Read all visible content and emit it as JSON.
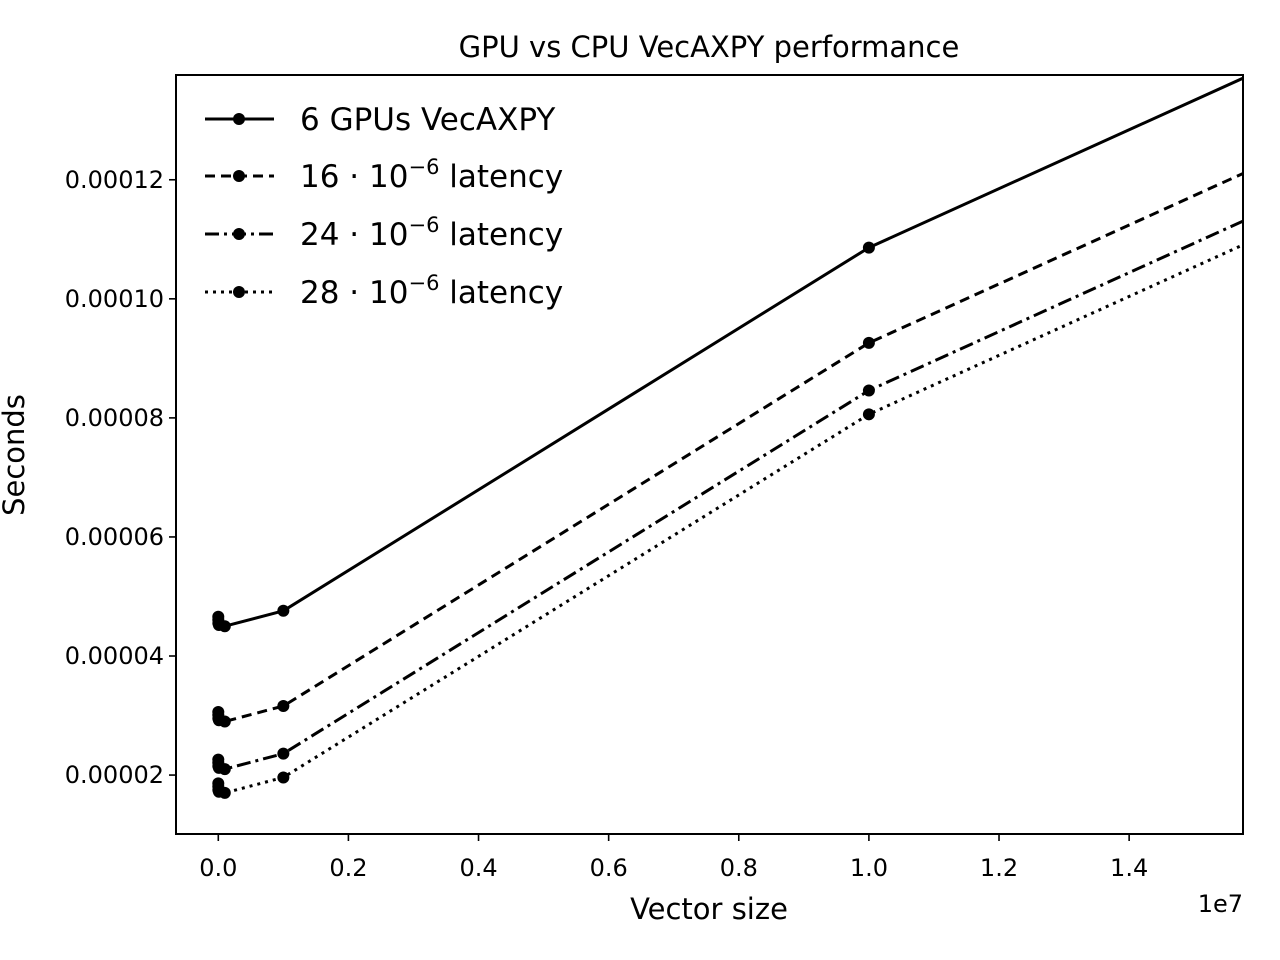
{
  "chart_data": {
    "type": "line",
    "title": "GPU vs CPU VecAXPY performance",
    "xlabel": "Vector size",
    "ylabel": "Seconds",
    "x_offset_label": "1e7",
    "xlim": [
      -650000,
      15750000
    ],
    "ylim": [
      1.01e-05,
      0.0001376
    ],
    "x_ticks": [
      0,
      2000000,
      4000000,
      6000000,
      8000000,
      10000000,
      12000000,
      14000000
    ],
    "x_tick_labels": [
      "0.0",
      "0.2",
      "0.4",
      "0.6",
      "0.8",
      "1.0",
      "1.2",
      "1.4"
    ],
    "y_ticks": [
      2e-05,
      4e-05,
      6e-05,
      8e-05,
      0.0001,
      0.00012
    ],
    "y_tick_labels": [
      "0.00002",
      "0.00004",
      "0.00006",
      "0.00008",
      "0.00010",
      "0.00012"
    ],
    "grid": false,
    "legend_position": "top-left",
    "series": [
      {
        "name": "6 GPUs VecAXPY",
        "label_main": "6 GPUs VecAXPY",
        "label_sup": "",
        "label_tail": "",
        "dash": "",
        "x": [
          10,
          100,
          1000,
          10000,
          100000,
          1000000,
          10000000,
          16000000
        ],
        "y": [
          4.66e-05,
          4.61e-05,
          4.55e-05,
          4.52e-05,
          4.5e-05,
          4.76e-05,
          0.0001086,
          0.0001383
        ]
      },
      {
        "name": "16 · 10−6 latency",
        "label_main": "16 · 10",
        "label_sup": "−6",
        "label_tail": " latency",
        "dash": "10,6",
        "x": [
          10,
          100,
          1000,
          10000,
          100000,
          1000000,
          10000000,
          16000000
        ],
        "y": [
          3.06e-05,
          3.01e-05,
          2.95e-05,
          2.92e-05,
          2.9e-05,
          3.16e-05,
          9.26e-05,
          0.0001223
        ]
      },
      {
        "name": "24 · 10−6 latency",
        "label_main": "24 · 10",
        "label_sup": "−6",
        "label_tail": " latency",
        "dash": "14,5,3,5",
        "x": [
          10,
          100,
          1000,
          10000,
          100000,
          1000000,
          10000000,
          16000000
        ],
        "y": [
          2.26e-05,
          2.21e-05,
          2.15e-05,
          2.12e-05,
          2.1e-05,
          2.36e-05,
          8.46e-05,
          0.0001143
        ]
      },
      {
        "name": "28 · 10−6 latency",
        "label_main": "28 · 10",
        "label_sup": "−6",
        "label_tail": " latency",
        "dash": "3,5",
        "x": [
          10,
          100,
          1000,
          10000,
          100000,
          1000000,
          10000000,
          16000000
        ],
        "y": [
          1.86e-05,
          1.81e-05,
          1.75e-05,
          1.72e-05,
          1.7e-05,
          1.96e-05,
          8.06e-05,
          0.0001103
        ]
      }
    ]
  }
}
